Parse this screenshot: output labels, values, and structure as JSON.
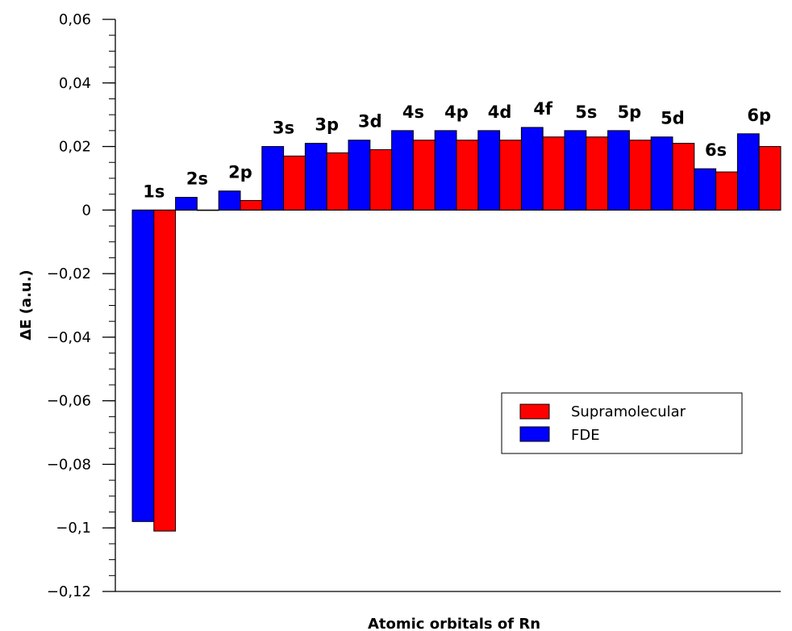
{
  "chart_data": {
    "type": "bar",
    "title": "",
    "xlabel": "Atomic orbitals of Rn",
    "ylabel": "ΔE (a.u.)",
    "ylim": [
      -0.12,
      0.06
    ],
    "y_ticks": [
      {
        "value": 0.06,
        "label": "0,06"
      },
      {
        "value": 0.04,
        "label": "0,04"
      },
      {
        "value": 0.02,
        "label": "0,02"
      },
      {
        "value": 0,
        "label": "0"
      },
      {
        "value": -0.02,
        "label": "−0,02"
      },
      {
        "value": -0.04,
        "label": "−0,04"
      },
      {
        "value": -0.06,
        "label": "−0,06"
      },
      {
        "value": -0.08,
        "label": "−0,08"
      },
      {
        "value": -0.1,
        "label": "−0,1"
      },
      {
        "value": -0.12,
        "label": "−0,12"
      }
    ],
    "categories": [
      "1s",
      "2s",
      "2p",
      "3s",
      "3p",
      "3d",
      "4s",
      "4p",
      "4d",
      "4f",
      "5s",
      "5p",
      "5d",
      "6s",
      "6p"
    ],
    "series": [
      {
        "name": "FDE",
        "color": "#0000ff",
        "values": [
          -0.098,
          0.004,
          0.006,
          0.02,
          0.021,
          0.022,
          0.025,
          0.025,
          0.025,
          0.026,
          0.025,
          0.025,
          0.023,
          0.013,
          0.024
        ]
      },
      {
        "name": "Supramolecular",
        "color": "#ff0000",
        "values": [
          -0.101,
          0.0,
          0.003,
          0.017,
          0.018,
          0.019,
          0.022,
          0.022,
          0.022,
          0.023,
          0.023,
          0.022,
          0.021,
          0.012,
          0.02
        ]
      }
    ],
    "legend": {
      "position": "right",
      "entries": [
        {
          "label": "Supramolecular",
          "color": "#ff0000"
        },
        {
          "label": "FDE",
          "color": "#0000ff"
        }
      ]
    },
    "grid": false
  }
}
